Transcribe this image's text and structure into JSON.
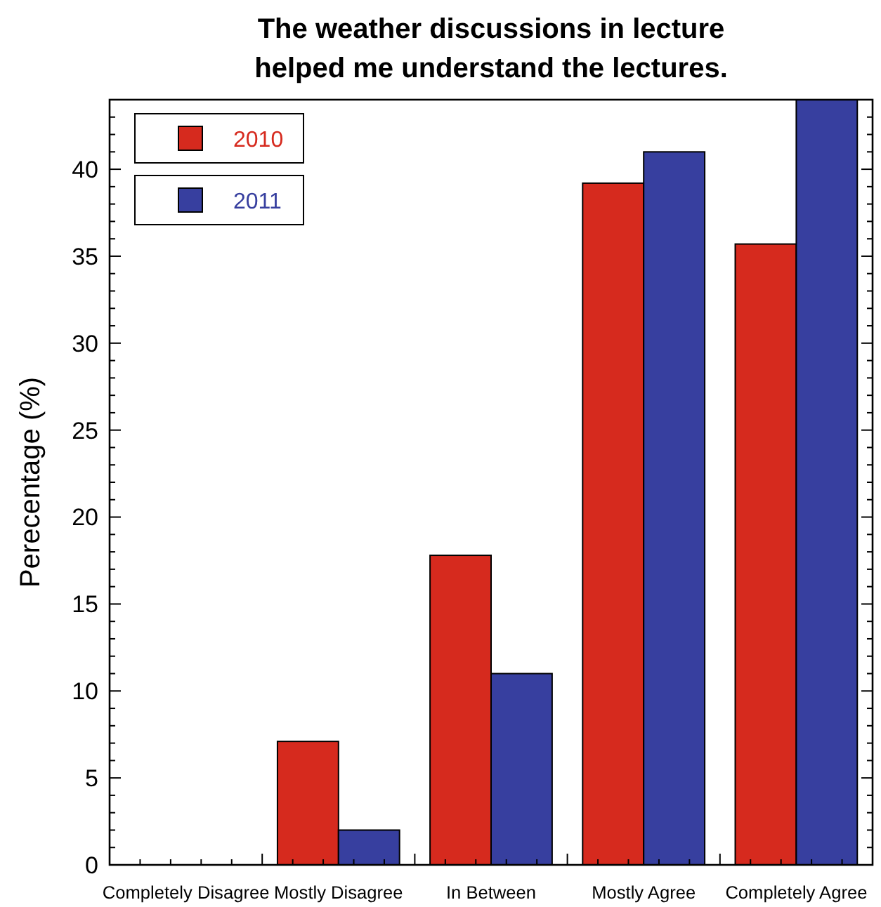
{
  "chart_data": {
    "type": "bar",
    "title": "The weather discussions in lecture\nhelped me understand the lectures.",
    "ylabel": "Perecentage (%)",
    "categories": [
      "Completely Disagree",
      "Mostly Disagree",
      "In Between",
      "Mostly Agree",
      "Completely Agree"
    ],
    "series": [
      {
        "name": "2010",
        "color": "#d62a1e",
        "values": [
          0,
          7.1,
          17.8,
          39.2,
          35.7
        ]
      },
      {
        "name": "2011",
        "color": "#373f9f",
        "values": [
          0,
          2.0,
          11.0,
          41.0,
          44
        ]
      }
    ],
    "ylim": [
      0,
      44
    ],
    "yticks": [
      0,
      {
        "value": 1,
        "label": null
      },
      {
        "value": 2,
        "label": null
      },
      {
        "value": 3,
        "label": null
      },
      {
        "value": 4,
        "label": null
      },
      5,
      {
        "value": 6,
        "label": null
      },
      {
        "value": 7,
        "label": null
      },
      {
        "value": 8,
        "label": null
      },
      {
        "value": 9,
        "label": null
      },
      10,
      {
        "value": 11,
        "label": null
      },
      {
        "value": 12,
        "label": null
      },
      {
        "value": 13,
        "label": null
      },
      {
        "value": 14,
        "label": null
      },
      15,
      {
        "value": 16,
        "label": null
      },
      {
        "value": 17,
        "label": null
      },
      {
        "value": 18,
        "label": null
      },
      {
        "value": 19,
        "label": null
      },
      20,
      {
        "value": 21,
        "label": null
      },
      {
        "value": 22,
        "label": null
      },
      {
        "value": 23,
        "label": null
      },
      {
        "value": 24,
        "label": null
      },
      25,
      {
        "value": 26,
        "label": null
      },
      {
        "value": 27,
        "label": null
      },
      {
        "value": 28,
        "label": null
      },
      {
        "value": 29,
        "label": null
      },
      30,
      {
        "value": 31,
        "label": null
      },
      {
        "value": 32,
        "label": null
      },
      {
        "value": 33,
        "label": null
      },
      {
        "value": 34,
        "label": null
      },
      35,
      {
        "value": 36,
        "label": null
      },
      {
        "value": 37,
        "label": null
      },
      {
        "value": 38,
        "label": null
      },
      {
        "value": 39,
        "label": null
      },
      40,
      {
        "value": 41,
        "label": null
      },
      {
        "value": 42,
        "label": null
      },
      {
        "value": 43,
        "label": null
      },
      {
        "value": 44,
        "label": null
      }
    ],
    "grid": false,
    "legend": "top left"
  }
}
